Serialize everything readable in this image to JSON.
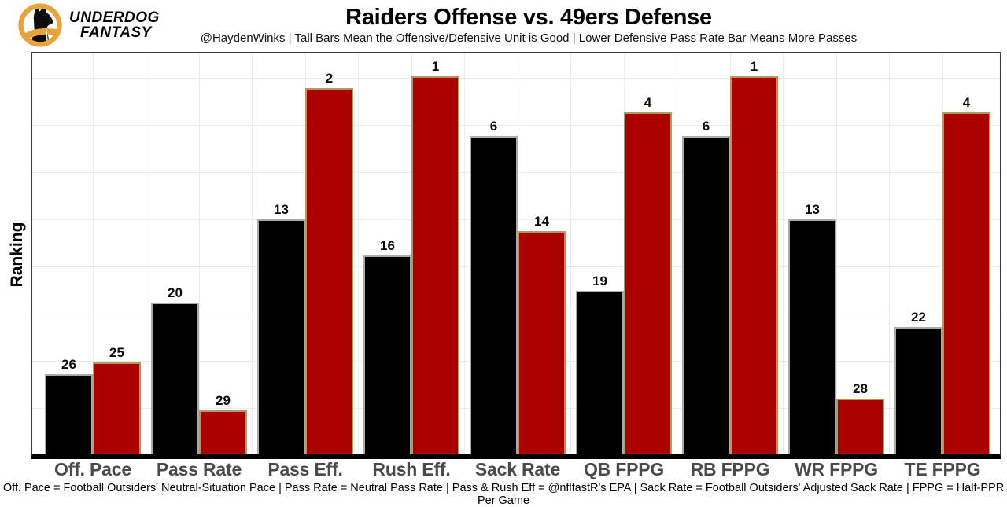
{
  "brand": {
    "line1": "UNDERDOG",
    "line2": "FANTASY",
    "logo_colors": {
      "ring_gold": "#E8A33B",
      "dog_black": "#0d0d0d"
    }
  },
  "header": {
    "title": "Raiders Offense vs. 49ers Defense",
    "subtitle": "@HaydenWinks | Tall Bars Mean the Offensive/Defensive Unit is Good | Lower Defensive Pass Rate Bar Means More Passes"
  },
  "y_axis_label": "Ranking",
  "footnote": "Off. Pace = Football Outsiders' Neutral-Situation Pace | Pass Rate = Neutral Pass Rate | Pass & Rush Eff = @nflfastR's EPA | Sack Rate = Football Outsiders' Adjusted Sack Rate | FPPG = Half-PPR Per Game",
  "chart_data": {
    "type": "bar",
    "title": "Raiders Offense vs. 49ers Defense",
    "subtitle": "@HaydenWinks | Tall Bars Mean the Offensive/Defensive Unit is Good | Lower Defensive Pass Rate Bar Means More Passes",
    "ylabel": "Ranking",
    "xlabel": "",
    "legend_position": "none",
    "grid": true,
    "rank_axis": "Values are NFL ranks (1 = best); better rank is drawn as a taller bar; no numeric y ticks shown",
    "categories": [
      "Off. Pace",
      "Pass Rate",
      "Pass Eff.",
      "Rush Eff.",
      "Sack Rate",
      "QB FPPG",
      "RB FPPG",
      "WR FPPG",
      "TE FPPG"
    ],
    "series": [
      {
        "name": "Raiders Offense",
        "fill": "#000000",
        "border": "#A5ACAF",
        "values": [
          26,
          20,
          13,
          16,
          6,
          19,
          6,
          13,
          22
        ]
      },
      {
        "name": "49ers Defense",
        "fill": "#AA0000",
        "border": "#B3995D",
        "values": [
          25,
          29,
          2,
          1,
          14,
          4,
          1,
          28,
          4
        ]
      }
    ]
  }
}
